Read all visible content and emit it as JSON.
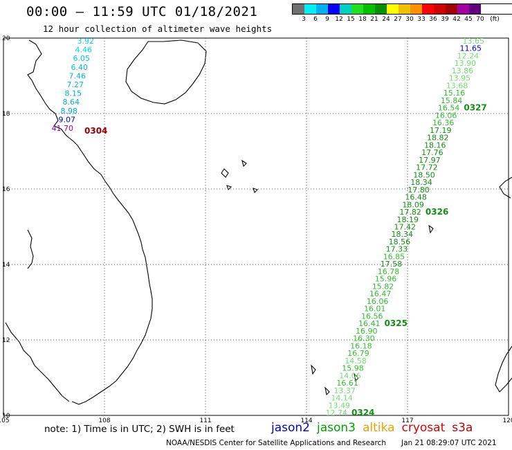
{
  "header": {
    "title": "00:00 – 11:59 UTC 01/18/2021",
    "subtitle": "12 hour collection of altimeter wave heights"
  },
  "legend": {
    "unit": "(ft)",
    "colors": [
      "#707070",
      "#00f0f0",
      "#00b0f0",
      "#0000f0",
      "#00d0c0",
      "#20e020",
      "#00c000",
      "#009000",
      "#ffff00",
      "#f0c000",
      "#ff9000",
      "#ff0000",
      "#d00000",
      "#a00000",
      "#a000a0",
      "#600080",
      "#ffffff"
    ],
    "labels": [
      "3",
      "6",
      "9",
      "12",
      "15",
      "18",
      "21",
      "24",
      "27",
      "30",
      "33",
      "36",
      "39",
      "42",
      "45",
      "70"
    ]
  },
  "map": {
    "lon_labels": [
      "105",
      "108",
      "111",
      "114",
      "117",
      "120"
    ],
    "lat_labels": [
      "20",
      "18",
      "16",
      "14",
      "12",
      "10"
    ],
    "lon_range": [
      105,
      120
    ],
    "lat_range": [
      10,
      20
    ]
  },
  "west_track": {
    "points": [
      {
        "lon": 107.2,
        "lat": 19.8,
        "value": "3.92",
        "color": "#00d8e8"
      },
      {
        "lon": 107.15,
        "lat": 19.62,
        "value": "4.46",
        "color": "#00d8e8"
      },
      {
        "lon": 107.05,
        "lat": 19.43,
        "value": "6.05",
        "color": "#00c8e8"
      },
      {
        "lon": 107.0,
        "lat": 19.24,
        "value": "6.40",
        "color": "#00c0e8"
      },
      {
        "lon": 106.95,
        "lat": 19.05,
        "value": "7.46",
        "color": "#00b8e0"
      },
      {
        "lon": 106.9,
        "lat": 18.86,
        "value": "7.27",
        "color": "#00b8e0"
      },
      {
        "lon": 106.85,
        "lat": 18.67,
        "value": "8.15",
        "color": "#00b0e0"
      },
      {
        "lon": 106.8,
        "lat": 18.48,
        "value": "8.64",
        "color": "#00b0e0"
      },
      {
        "lon": 106.75,
        "lat": 18.29,
        "value": "8.98",
        "color": "#00a8e0"
      },
      {
        "lon": 106.7,
        "lat": 18.1,
        "value": "9.07",
        "color": "#0000c0"
      },
      {
        "lon": 106.6,
        "lat": 17.91,
        "value": "41.70",
        "color": "#a000a0"
      }
    ],
    "pass": {
      "label": "0304",
      "color": "#a00000"
    }
  },
  "east_track": {
    "points": [
      {
        "value": "13.65",
        "color": "#70e070"
      },
      {
        "value": "11.65",
        "color": "#0000d0"
      },
      {
        "value": "12.24",
        "color": "#70e070"
      },
      {
        "value": "13.90",
        "color": "#70e070"
      },
      {
        "value": "13.86",
        "color": "#70e070"
      },
      {
        "value": "13.95",
        "color": "#70e070"
      },
      {
        "value": "13.68",
        "color": "#70e070"
      },
      {
        "value": "15.16",
        "color": "#30c030"
      },
      {
        "value": "15.84",
        "color": "#30c030"
      },
      {
        "value": "16.54",
        "color": "#30c030"
      },
      {
        "value": "16.06",
        "color": "#30c030"
      },
      {
        "value": "16.36",
        "color": "#30c030"
      },
      {
        "value": "17.19",
        "color": "#109010"
      },
      {
        "value": "18.82",
        "color": "#109010"
      },
      {
        "value": "18.16",
        "color": "#109010"
      },
      {
        "value": "17.76",
        "color": "#109010"
      },
      {
        "value": "17.97",
        "color": "#109010"
      },
      {
        "value": "17.72",
        "color": "#109010"
      },
      {
        "value": "18.50",
        "color": "#109010"
      },
      {
        "value": "18.34",
        "color": "#109010"
      },
      {
        "value": "17.80",
        "color": "#109010"
      },
      {
        "value": "16.48",
        "color": "#109010"
      },
      {
        "value": "18.09",
        "color": "#109010"
      },
      {
        "value": "17.82",
        "color": "#109010"
      },
      {
        "value": "18.19",
        "color": "#109010"
      },
      {
        "value": "17.42",
        "color": "#109010"
      },
      {
        "value": "18.34",
        "color": "#109010"
      },
      {
        "value": "18.56",
        "color": "#109010"
      },
      {
        "value": "17.33",
        "color": "#109010"
      },
      {
        "value": "16.85",
        "color": "#30c030"
      },
      {
        "value": "17.58",
        "color": "#109010"
      },
      {
        "value": "16.78",
        "color": "#30c030"
      },
      {
        "value": "15.96",
        "color": "#30c030"
      },
      {
        "value": "15.82",
        "color": "#30c030"
      },
      {
        "value": "16.47",
        "color": "#30c030"
      },
      {
        "value": "16.06",
        "color": "#30c030"
      },
      {
        "value": "16.01",
        "color": "#30c030"
      },
      {
        "value": "16.56",
        "color": "#30c030"
      },
      {
        "value": "16.41",
        "color": "#30c030"
      },
      {
        "value": "16.90",
        "color": "#30c030"
      },
      {
        "value": "16.30",
        "color": "#30c030"
      },
      {
        "value": "16.18",
        "color": "#30c030"
      },
      {
        "value": "16.79",
        "color": "#30c030"
      },
      {
        "value": "14.58",
        "color": "#70e070"
      },
      {
        "value": "15.98",
        "color": "#30c030"
      },
      {
        "value": "14.06",
        "color": "#70e070"
      },
      {
        "value": "16.61",
        "color": "#30c030"
      },
      {
        "value": "13.37",
        "color": "#70e070"
      },
      {
        "value": "14.14",
        "color": "#70e070"
      },
      {
        "value": "13.49",
        "color": "#70e070"
      },
      {
        "value": "12.74",
        "color": "#70e070"
      }
    ],
    "pass_labels": [
      {
        "label": "0327",
        "index": 9,
        "color": "#109010"
      },
      {
        "label": "0326",
        "index": 23,
        "color": "#109010"
      },
      {
        "label": "0325",
        "index": 38,
        "color": "#109010"
      },
      {
        "label": "0324",
        "index": 50,
        "color": "#109010"
      }
    ]
  },
  "footer": {
    "note": "note: 1) Time is in UTC; 2) SWH is in feet",
    "missions": [
      {
        "name": "jason2",
        "color": "#0000d0"
      },
      {
        "name": "jason3",
        "color": "#00a000"
      },
      {
        "name": "altika",
        "color": "#f0a000"
      },
      {
        "name": "cryosat",
        "color": "#e00000"
      },
      {
        "name": "s3a",
        "color": "#c00000"
      }
    ],
    "credit": "NOAA/NESDIS Center for Satellite Applications and Research",
    "timestamp": "Jan 21 08:29:07 UTC 2021"
  }
}
